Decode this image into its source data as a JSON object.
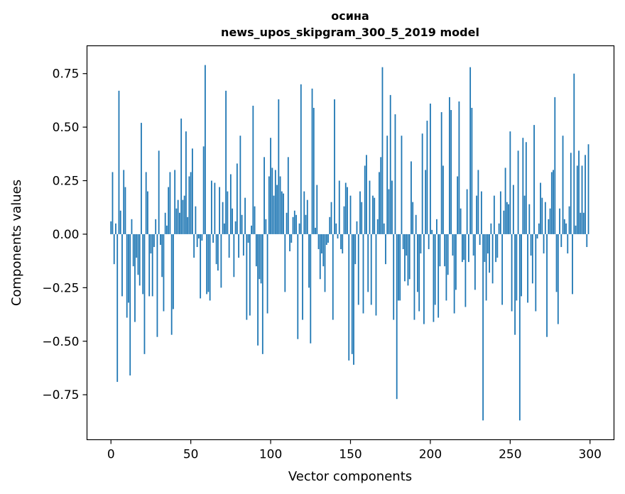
{
  "chart_data": {
    "type": "bar",
    "title": "осина",
    "subtitle": "news_upos_skipgram_300_5_2019 model",
    "xlabel": "Vector components",
    "ylabel": "Components values",
    "xlim": [
      -15,
      315
    ],
    "ylim": [
      -0.96,
      0.88
    ],
    "x_ticks": [
      0,
      50,
      100,
      150,
      200,
      250,
      300
    ],
    "x_tick_labels": [
      "0",
      "50",
      "100",
      "150",
      "200",
      "250",
      "300"
    ],
    "y_ticks": [
      -0.75,
      -0.5,
      -0.25,
      0.0,
      0.25,
      0.5,
      0.75
    ],
    "y_tick_labels": [
      "−0.75",
      "−0.50",
      "−0.25",
      "0.00",
      "0.25",
      "0.50",
      "0.75"
    ],
    "bar_color": "#1f77b4",
    "grid": false,
    "series": [
      {
        "name": "осина",
        "values": [
          0.06,
          0.29,
          -0.14,
          0.05,
          -0.69,
          0.67,
          0.11,
          -0.29,
          0.3,
          0.22,
          -0.39,
          -0.32,
          -0.66,
          0.07,
          -0.15,
          -0.41,
          -0.11,
          -0.19,
          -0.24,
          0.52,
          -0.28,
          -0.56,
          0.29,
          0.2,
          -0.29,
          -0.09,
          -0.29,
          -0.06,
          0.07,
          -0.48,
          0.39,
          -0.05,
          -0.2,
          -0.36,
          0.1,
          0.04,
          0.22,
          0.29,
          -0.47,
          -0.35,
          0.3,
          0.12,
          0.16,
          0.1,
          0.54,
          0.16,
          0.18,
          0.48,
          0.08,
          0.27,
          0.29,
          0.4,
          -0.11,
          0.13,
          -0.06,
          -0.02,
          -0.3,
          -0.03,
          0.41,
          0.79,
          -0.28,
          -0.27,
          -0.31,
          0.25,
          -0.04,
          0.24,
          -0.14,
          -0.17,
          0.22,
          -0.25,
          0.15,
          0.05,
          0.67,
          0.2,
          -0.11,
          0.28,
          0.12,
          -0.2,
          0.06,
          0.33,
          -0.11,
          0.46,
          0.09,
          -0.1,
          0.17,
          -0.4,
          -0.04,
          -0.38,
          0.04,
          0.6,
          0.13,
          -0.15,
          -0.52,
          -0.21,
          -0.23,
          -0.56,
          0.36,
          0.07,
          -0.37,
          0.27,
          0.45,
          0.31,
          0.18,
          0.3,
          0.23,
          0.63,
          0.27,
          0.2,
          0.19,
          -0.27,
          0.1,
          0.36,
          -0.08,
          -0.04,
          0.08,
          0.11,
          0.09,
          -0.49,
          0.05,
          0.7,
          -0.4,
          0.2,
          0.09,
          0.16,
          -0.25,
          -0.51,
          0.68,
          0.59,
          0.03,
          0.23,
          -0.07,
          -0.21,
          -0.09,
          -0.15,
          -0.27,
          -0.05,
          -0.04,
          0.08,
          0.15,
          -0.4,
          0.63,
          0.05,
          -0.02,
          0.25,
          -0.07,
          -0.09,
          0.13,
          0.24,
          0.22,
          -0.59,
          0.18,
          -0.56,
          -0.61,
          -0.14,
          0.06,
          -0.33,
          0.2,
          0.15,
          -0.37,
          0.32,
          0.37,
          -0.27,
          0.25,
          -0.33,
          0.18,
          0.17,
          -0.38,
          0.07,
          0.29,
          0.36,
          0.78,
          0.05,
          -0.14,
          0.46,
          0.21,
          0.65,
          0.25,
          -0.4,
          0.56,
          -0.77,
          -0.31,
          -0.31,
          0.46,
          -0.07,
          -0.22,
          -0.1,
          -0.24,
          -0.21,
          0.34,
          0.15,
          -0.4,
          0.09,
          -0.27,
          -0.36,
          -0.09,
          0.47,
          -0.42,
          0.3,
          0.53,
          -0.07,
          0.61,
          0.02,
          -0.41,
          -0.33,
          0.07,
          -0.39,
          -0.15,
          0.57,
          0.32,
          -0.15,
          -0.31,
          -0.19,
          0.64,
          0.58,
          -0.1,
          -0.37,
          -0.26,
          0.27,
          0.62,
          0.12,
          -0.13,
          -0.12,
          -0.34,
          0.21,
          -0.13,
          0.78,
          0.59,
          -0.1,
          -0.26,
          0.18,
          0.3,
          -0.05,
          0.2,
          -0.87,
          -0.13,
          -0.31,
          -0.09,
          -0.18,
          0.05,
          -0.23,
          0.18,
          -0.13,
          -0.11,
          0.05,
          0.2,
          -0.33,
          0.11,
          0.31,
          0.15,
          0.14,
          0.48,
          -0.36,
          0.23,
          -0.47,
          -0.31,
          0.39,
          -0.87,
          -0.29,
          0.45,
          0.18,
          0.43,
          -0.32,
          0.14,
          -0.1,
          -0.23,
          0.51,
          -0.36,
          -0.02,
          0.05,
          0.24,
          0.17,
          -0.09,
          0.15,
          -0.48,
          0.07,
          0.12,
          0.29,
          0.3,
          0.64,
          -0.27,
          -0.42,
          0.12,
          -0.06,
          0.46,
          0.07,
          0.05,
          -0.09,
          0.13,
          0.38,
          -0.28,
          0.75,
          0.04,
          0.32,
          0.39,
          0.1,
          0.32,
          0.1,
          0.37,
          -0.06,
          0.42
        ]
      }
    ]
  }
}
